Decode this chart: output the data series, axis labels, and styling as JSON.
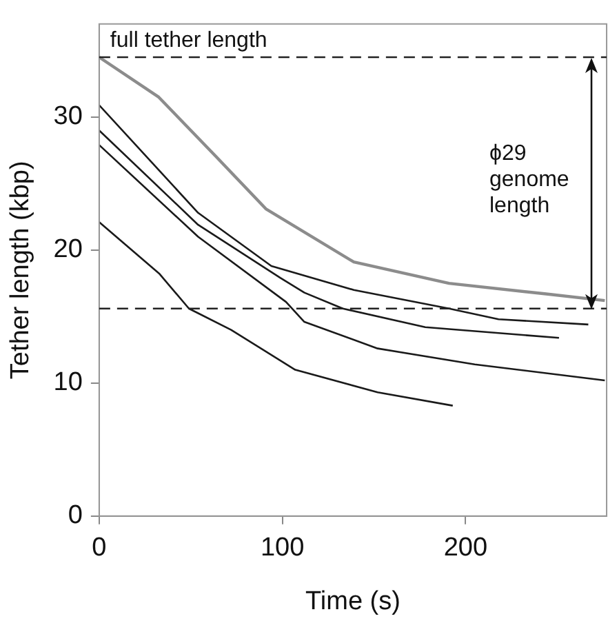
{
  "chart_data": {
    "type": "line",
    "xlabel": "Time (s)",
    "ylabel": "Tether length (kbp)",
    "xlim": [
      0,
      277
    ],
    "ylim": [
      0,
      37
    ],
    "xticks": [
      0,
      100,
      200
    ],
    "yticks": [
      0,
      10,
      20,
      30
    ],
    "grid": false,
    "legend": false,
    "marker": "none",
    "line_style": "solid",
    "series": [
      {
        "color": "#8c8c8c",
        "x": [
          0,
          32.5,
          64,
          91,
          139,
          191,
          244,
          276
        ],
        "values": [
          34.5,
          31.5,
          27,
          23.1,
          19.1,
          17.5,
          16.7,
          16.2
        ]
      },
      {
        "color": "#1a1a1a",
        "x": [
          0,
          54,
          94,
          139,
          191,
          218,
          267
        ],
        "values": [
          30.9,
          22.8,
          18.8,
          17,
          15.6,
          14.8,
          14.4
        ]
      },
      {
        "color": "#1a1a1a",
        "x": [
          0,
          54,
          99,
          112,
          133,
          178,
          251
        ],
        "values": [
          29,
          21.9,
          17.9,
          16.8,
          15.6,
          14.2,
          13.4
        ]
      },
      {
        "color": "#1a1a1a",
        "x": [
          0,
          54,
          102,
          112,
          152,
          205,
          276
        ],
        "values": [
          27.9,
          21,
          16.1,
          14.6,
          12.6,
          11.4,
          10.2
        ]
      },
      {
        "color": "#1a1a1a",
        "x": [
          0,
          33,
          49,
          72,
          107,
          152,
          193
        ],
        "values": [
          22.1,
          18.2,
          15.6,
          14,
          11,
          9.3,
          8.3
        ]
      }
    ],
    "ref_lines": [
      {
        "axis": "y",
        "value": 34.5,
        "label": "full tether length",
        "color": "#222222",
        "line_style": "dashed"
      },
      {
        "axis": "y",
        "value": 15.6,
        "label": null,
        "color": "#222222",
        "line_style": "dashed"
      }
    ],
    "annotations": [
      "ϕ29 genome length"
    ]
  }
}
